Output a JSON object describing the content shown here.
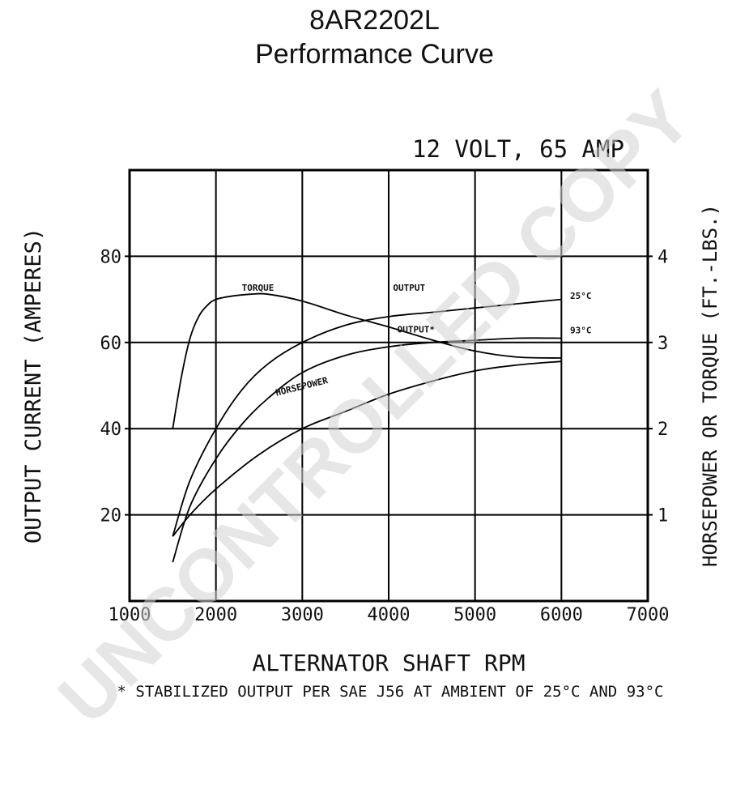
{
  "header": {
    "title": "8AR2202L",
    "subtitle": "Performance Curve"
  },
  "chart_data": {
    "type": "line",
    "title": "12 VOLT, 65 AMP",
    "xlabel": "ALTERNATOR SHAFT RPM",
    "ylabel": "OUTPUT CURRENT (AMPERES)",
    "y2label": "HORSEPOWER OR TORQUE (FT.-LBS.)",
    "xlim": [
      1000,
      7000
    ],
    "ylim": [
      0,
      100
    ],
    "y2lim": [
      0,
      5
    ],
    "x_ticks": [
      "1000",
      "2000",
      "3000",
      "4000",
      "5000",
      "6000",
      "7000"
    ],
    "y_ticks": [
      "20",
      "40",
      "60",
      "80"
    ],
    "y2_ticks": [
      "1",
      "2",
      "3",
      "4"
    ],
    "grid": true,
    "footnote": "* STABILIZED OUTPUT PER SAE J56 AT AMBIENT OF 25°C AND 93°C",
    "watermark": "UNCONTROLLED COPY",
    "series": [
      {
        "name": "OUTPUT 25°C",
        "label": "OUTPUT",
        "temp": "25°C",
        "axis": "left",
        "x": [
          1500,
          1700,
          2000,
          2300,
          2600,
          3000,
          3500,
          4000,
          4500,
          5000,
          5500,
          6000
        ],
        "values": [
          15,
          28,
          40,
          49,
          55,
          60,
          64,
          66,
          67,
          68,
          69,
          70
        ]
      },
      {
        "name": "OUTPUT* 93°C",
        "label": "OUTPUT*",
        "temp": "93°C",
        "axis": "left",
        "x": [
          1500,
          1700,
          2000,
          2300,
          2600,
          3000,
          3500,
          4000,
          4500,
          5000,
          5500,
          6000
        ],
        "values": [
          9,
          22,
          33,
          41,
          47,
          53,
          57,
          59,
          60,
          60.5,
          61,
          61
        ]
      },
      {
        "name": "TORQUE",
        "label": "TORQUE",
        "axis": "right",
        "x": [
          1500,
          1600,
          1700,
          1800,
          1900,
          2000,
          2200,
          2400,
          2600,
          3000,
          3500,
          4000,
          4500,
          5000,
          5500,
          6000
        ],
        "values": [
          2.0,
          2.6,
          3.05,
          3.3,
          3.43,
          3.5,
          3.54,
          3.56,
          3.56,
          3.48,
          3.32,
          3.18,
          3.03,
          2.9,
          2.83,
          2.82
        ]
      },
      {
        "name": "HORSEPOWER",
        "label": "HORSEPOWER",
        "axis": "right",
        "x": [
          1500,
          1700,
          2000,
          2500,
          3000,
          3500,
          4000,
          4500,
          5000,
          5500,
          6000
        ],
        "values": [
          0.75,
          1.0,
          1.3,
          1.7,
          2.0,
          2.2,
          2.4,
          2.55,
          2.67,
          2.74,
          2.78
        ]
      }
    ]
  }
}
